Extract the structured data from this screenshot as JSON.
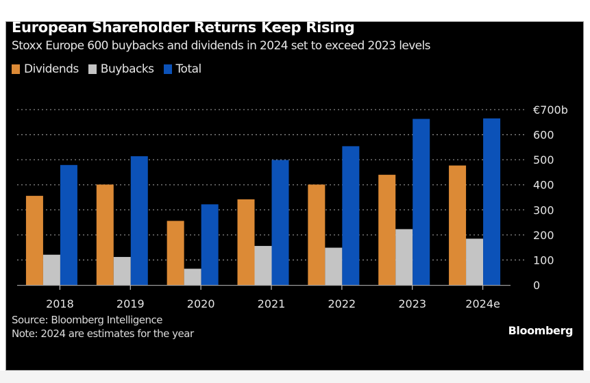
{
  "chart_data": {
    "type": "bar",
    "title": "European Shareholder Returns Keep Rising",
    "subtitle": "Stoxx Europe 600 buybacks and dividends in 2024 set to exceed 2023 levels",
    "categories": [
      "2018",
      "2019",
      "2020",
      "2021",
      "2022",
      "2023",
      "2024e"
    ],
    "series": [
      {
        "name": "Dividends",
        "color": "#dc8a36",
        "values": [
          356,
          401,
          256,
          342,
          401,
          440,
          477
        ]
      },
      {
        "name": "Buybacks",
        "color": "#c4c4c4",
        "values": [
          121,
          112,
          65,
          156,
          149,
          223,
          185
        ]
      },
      {
        "name": "Total",
        "color": "#0c52b8",
        "values": [
          479,
          514,
          322,
          499,
          554,
          663,
          665
        ]
      }
    ],
    "xlabel": "",
    "ylabel": "",
    "ylim": [
      0,
      700
    ],
    "yticks": [
      0,
      100,
      200,
      300,
      400,
      500,
      600,
      700
    ],
    "ytick_labels": [
      "0",
      "100",
      "200",
      "300",
      "400",
      "500",
      "600",
      "€700b"
    ],
    "y_axis_side": "right",
    "grid": true,
    "legend_position": "top-left",
    "source": "Source: Bloomberg Intelligence",
    "note": "Note: 2024 are estimates for the year",
    "brand": "Bloomberg"
  }
}
